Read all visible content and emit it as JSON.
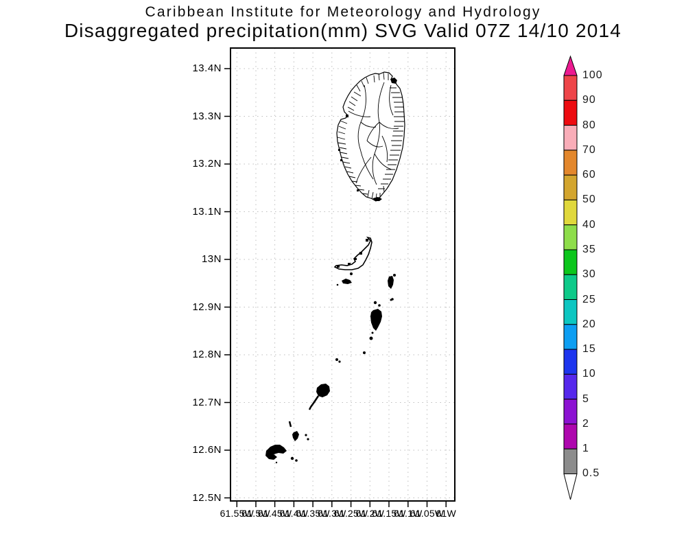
{
  "header": {
    "line1": "Caribbean Institute for Meteorology and Hydrology",
    "line2": "Disaggregated precipitation(mm) SVG Valid 07Z 14/10 2014"
  },
  "map": {
    "lat_ticks": [
      "13.4N",
      "13.3N",
      "13.2N",
      "13.1N",
      "13N",
      "12.9N",
      "12.8N",
      "12.7N",
      "12.6N",
      "12.5N"
    ],
    "lon_ticks": [
      "61.55W",
      "61.5W",
      "61.45W",
      "61.4W",
      "61.35W",
      "61.3W",
      "61.25W",
      "61.2W",
      "61.15W",
      "61.1W",
      "61.05W",
      "61W"
    ],
    "gridline_color": "#bdbdbd",
    "frame_color": "#000000",
    "coast_color": "#000000"
  },
  "colorbar": {
    "levels": [
      "100",
      "90",
      "80",
      "70",
      "60",
      "50",
      "40",
      "35",
      "30",
      "25",
      "20",
      "15",
      "10",
      "5",
      "2",
      "1",
      "0.5"
    ],
    "segment_colors": [
      "#ee4549",
      "#ed0b10",
      "#f9adb8",
      "#e3872c",
      "#d3a52e",
      "#e0d83c",
      "#8edd4a",
      "#0cc61c",
      "#0eca89",
      "#0dc6c1",
      "#0d9ef2",
      "#1d35ee",
      "#5628ec",
      "#8c12d2",
      "#ae07ae",
      "#8c8c8c"
    ],
    "arrow_top_color": "#ec1a90",
    "arrow_bottom_color": "#ffffff",
    "outline_color": "#000000"
  }
}
